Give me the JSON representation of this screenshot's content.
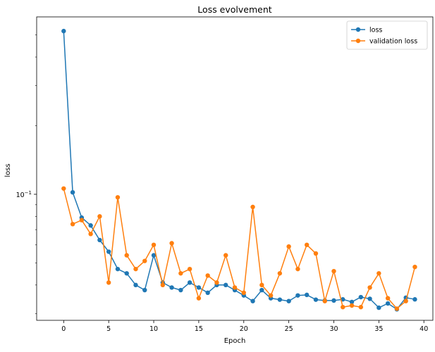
{
  "chart_data": {
    "type": "line",
    "title": "Loss evolvement",
    "xlabel": "Epoch",
    "ylabel": "loss",
    "xlim": [
      -3,
      41
    ],
    "ylim": [
      0.028,
      0.6
    ],
    "yscale": "log",
    "grid": false,
    "legend_position": "top-right",
    "x_ticks": [
      0,
      5,
      10,
      15,
      20,
      25,
      30,
      35,
      40
    ],
    "y_ticks": [
      {
        "value": 0.1,
        "label": "10",
        "exp": "−1"
      }
    ],
    "x": [
      0,
      1,
      2,
      3,
      4,
      5,
      6,
      7,
      8,
      9,
      10,
      11,
      12,
      13,
      14,
      15,
      16,
      17,
      18,
      19,
      20,
      21,
      22,
      23,
      24,
      25,
      26,
      27,
      28,
      29,
      30,
      31,
      32,
      33,
      34,
      35,
      36,
      37,
      38,
      39
    ],
    "series": [
      {
        "name": "loss",
        "color": "#1f77b4",
        "values": [
          0.52,
          0.102,
          0.079,
          0.073,
          0.063,
          0.056,
          0.047,
          0.045,
          0.04,
          0.038,
          0.054,
          0.041,
          0.039,
          0.038,
          0.041,
          0.039,
          0.037,
          0.04,
          0.04,
          0.038,
          0.036,
          0.034,
          0.038,
          0.035,
          0.0345,
          0.034,
          0.036,
          0.0362,
          0.0345,
          0.0342,
          0.0342,
          0.0346,
          0.0337,
          0.0354,
          0.0348,
          0.0318,
          0.0332,
          0.0313,
          0.0352,
          0.0346
        ]
      },
      {
        "name": "validation loss",
        "color": "#ff7f0e",
        "values": [
          0.106,
          0.074,
          0.077,
          0.067,
          0.08,
          0.041,
          0.097,
          0.054,
          0.047,
          0.051,
          0.06,
          0.04,
          0.061,
          0.045,
          0.047,
          0.035,
          0.044,
          0.041,
          0.054,
          0.039,
          0.037,
          0.088,
          0.04,
          0.036,
          0.045,
          0.059,
          0.047,
          0.06,
          0.055,
          0.034,
          0.046,
          0.032,
          0.0325,
          0.032,
          0.039,
          0.045,
          0.035,
          0.0315,
          0.034,
          0.048
        ]
      }
    ]
  }
}
